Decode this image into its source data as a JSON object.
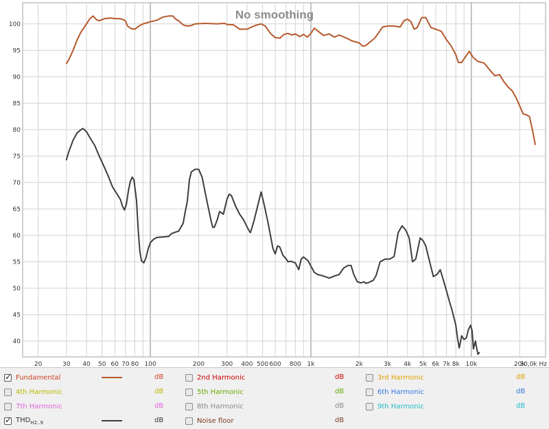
{
  "chart_data": {
    "type": "line",
    "title": "No smoothing",
    "xscale": "log",
    "xlim": [
      16,
      29000
    ],
    "ylim": [
      37,
      104
    ],
    "x_ticks": [
      {
        "v": 20,
        "t": "20"
      },
      {
        "v": 30,
        "t": "30"
      },
      {
        "v": 40,
        "t": "40"
      },
      {
        "v": 50,
        "t": "50"
      },
      {
        "v": 60,
        "t": "60"
      },
      {
        "v": 70,
        "t": "70"
      },
      {
        "v": 80,
        "t": "80"
      },
      {
        "v": 100,
        "t": "100"
      },
      {
        "v": 200,
        "t": "200"
      },
      {
        "v": 300,
        "t": "300"
      },
      {
        "v": 400,
        "t": "400"
      },
      {
        "v": 500,
        "t": "500"
      },
      {
        "v": 600,
        "t": "600"
      },
      {
        "v": 800,
        "t": "800"
      },
      {
        "v": 1000,
        "t": "1k"
      },
      {
        "v": 2000,
        "t": "2k"
      },
      {
        "v": 3000,
        "t": "3k"
      },
      {
        "v": 4000,
        "t": "4k"
      },
      {
        "v": 5000,
        "t": "5k"
      },
      {
        "v": 6000,
        "t": "6k"
      },
      {
        "v": 7000,
        "t": "7k"
      },
      {
        "v": 8000,
        "t": "8k"
      },
      {
        "v": 10000,
        "t": "10k"
      },
      {
        "v": 20000,
        "t": "20k"
      }
    ],
    "x_end_label": "30,0k Hz",
    "y_ticks": [
      40,
      45,
      50,
      55,
      60,
      65,
      70,
      75,
      80,
      85,
      90,
      95,
      100
    ],
    "y_unit": "dB",
    "grid": true,
    "series": [
      {
        "name": "Fundamental",
        "color": "#b5582a",
        "points": [
          [
            30,
            92.5
          ],
          [
            31,
            93.2
          ],
          [
            33,
            95
          ],
          [
            35,
            97
          ],
          [
            37,
            98.5
          ],
          [
            40,
            100
          ],
          [
            42,
            101
          ],
          [
            44,
            101.5
          ],
          [
            46,
            100.8
          ],
          [
            48,
            100.6
          ],
          [
            52,
            101
          ],
          [
            56,
            101.1
          ],
          [
            60,
            101
          ],
          [
            64,
            101
          ],
          [
            68,
            100.8
          ],
          [
            70,
            100.5
          ],
          [
            72,
            99.6
          ],
          [
            76,
            99.1
          ],
          [
            80,
            99
          ],
          [
            85,
            99.6
          ],
          [
            90,
            100
          ],
          [
            100,
            100.4
          ],
          [
            110,
            100.7
          ],
          [
            120,
            101.3
          ],
          [
            130,
            101.5
          ],
          [
            138,
            101.5
          ],
          [
            145,
            100.8
          ],
          [
            150,
            100.6
          ],
          [
            160,
            99.8
          ],
          [
            170,
            99.6
          ],
          [
            180,
            99.7
          ],
          [
            190,
            100
          ],
          [
            220,
            100.1
          ],
          [
            260,
            100
          ],
          [
            290,
            100.1
          ],
          [
            300,
            99.9
          ],
          [
            330,
            99.8
          ],
          [
            360,
            99
          ],
          [
            400,
            99
          ],
          [
            450,
            99.7
          ],
          [
            490,
            100
          ],
          [
            520,
            99.6
          ],
          [
            560,
            98.2
          ],
          [
            600,
            97.4
          ],
          [
            640,
            97.3
          ],
          [
            680,
            98
          ],
          [
            720,
            98.2
          ],
          [
            760,
            97.9
          ],
          [
            800,
            98.1
          ],
          [
            850,
            97.6
          ],
          [
            900,
            98
          ],
          [
            950,
            97.5
          ],
          [
            1000,
            98.2
          ],
          [
            1050,
            99.2
          ],
          [
            1100,
            98.7
          ],
          [
            1200,
            97.8
          ],
          [
            1300,
            98.1
          ],
          [
            1400,
            97.5
          ],
          [
            1500,
            97.9
          ],
          [
            1700,
            97.2
          ],
          [
            1800,
            96.8
          ],
          [
            1900,
            96.6
          ],
          [
            2000,
            96.4
          ],
          [
            2100,
            95.8
          ],
          [
            2200,
            95.9
          ],
          [
            2300,
            96.4
          ],
          [
            2500,
            97.3
          ],
          [
            2800,
            99.4
          ],
          [
            3000,
            99.6
          ],
          [
            3300,
            99.6
          ],
          [
            3600,
            99.4
          ],
          [
            3800,
            100.6
          ],
          [
            4000,
            100.9
          ],
          [
            4200,
            100.4
          ],
          [
            4400,
            99
          ],
          [
            4600,
            99.3
          ],
          [
            4900,
            101.2
          ],
          [
            5200,
            101.2
          ],
          [
            5600,
            99.3
          ],
          [
            6000,
            99
          ],
          [
            6500,
            98.6
          ],
          [
            7000,
            97
          ],
          [
            7500,
            95.8
          ],
          [
            8000,
            94.2
          ],
          [
            8300,
            92.7
          ],
          [
            8700,
            92.7
          ],
          [
            9200,
            93.8
          ],
          [
            9700,
            94.8
          ],
          [
            10300,
            93.6
          ],
          [
            11000,
            92.9
          ],
          [
            12000,
            92.6
          ],
          [
            13000,
            91.3
          ],
          [
            14000,
            90.2
          ],
          [
            15000,
            90.4
          ],
          [
            16000,
            89
          ],
          [
            17000,
            88
          ],
          [
            18000,
            87.3
          ],
          [
            19000,
            86
          ],
          [
            20000,
            84.5
          ],
          [
            21000,
            83
          ],
          [
            22000,
            82.8
          ],
          [
            23000,
            82.5
          ],
          [
            24000,
            80
          ],
          [
            25000,
            77.2
          ]
        ]
      },
      {
        "name": "THD",
        "color": "#3c3c3c",
        "points": [
          [
            30,
            74.3
          ],
          [
            31,
            75.8
          ],
          [
            33,
            78
          ],
          [
            35,
            79.4
          ],
          [
            37,
            80
          ],
          [
            38,
            80.2
          ],
          [
            40,
            79.6
          ],
          [
            42,
            78.5
          ],
          [
            45,
            77
          ],
          [
            48,
            75
          ],
          [
            52,
            72.7
          ],
          [
            55,
            71
          ],
          [
            58,
            69.2
          ],
          [
            62,
            67.8
          ],
          [
            65,
            66.8
          ],
          [
            67,
            65.5
          ],
          [
            69,
            64.8
          ],
          [
            71,
            66
          ],
          [
            73,
            68.5
          ],
          [
            75,
            70.2
          ],
          [
            77,
            71
          ],
          [
            79,
            70.5
          ],
          [
            82,
            66.5
          ],
          [
            84,
            61
          ],
          [
            86,
            57
          ],
          [
            88,
            55.2
          ],
          [
            91,
            54.8
          ],
          [
            94,
            55.8
          ],
          [
            97,
            57.5
          ],
          [
            100,
            58.6
          ],
          [
            105,
            59.3
          ],
          [
            110,
            59.6
          ],
          [
            120,
            59.7
          ],
          [
            130,
            59.8
          ],
          [
            135,
            60.3
          ],
          [
            140,
            60.5
          ],
          [
            150,
            60.8
          ],
          [
            160,
            62.3
          ],
          [
            165,
            64.5
          ],
          [
            170,
            66.5
          ],
          [
            175,
            70.5
          ],
          [
            180,
            72
          ],
          [
            190,
            72.5
          ],
          [
            200,
            72.5
          ],
          [
            210,
            71
          ],
          [
            225,
            66.5
          ],
          [
            240,
            62.5
          ],
          [
            245,
            61.5
          ],
          [
            250,
            61.5
          ],
          [
            260,
            62.8
          ],
          [
            270,
            64.5
          ],
          [
            285,
            64
          ],
          [
            300,
            66.8
          ],
          [
            310,
            67.8
          ],
          [
            320,
            67.5
          ],
          [
            340,
            65.5
          ],
          [
            360,
            64
          ],
          [
            380,
            63
          ],
          [
            410,
            61
          ],
          [
            420,
            60.5
          ],
          [
            440,
            62.5
          ],
          [
            470,
            66
          ],
          [
            490,
            68.2
          ],
          [
            510,
            66
          ],
          [
            540,
            62.5
          ],
          [
            560,
            60
          ],
          [
            580,
            57.5
          ],
          [
            600,
            56.5
          ],
          [
            620,
            58
          ],
          [
            640,
            57.8
          ],
          [
            670,
            56.2
          ],
          [
            700,
            55.6
          ],
          [
            720,
            55
          ],
          [
            750,
            55.1
          ],
          [
            800,
            54.8
          ],
          [
            840,
            53.5
          ],
          [
            870,
            55.5
          ],
          [
            900,
            55.9
          ],
          [
            960,
            55.2
          ],
          [
            1000,
            54.2
          ],
          [
            1050,
            53
          ],
          [
            1100,
            52.6
          ],
          [
            1200,
            52.3
          ],
          [
            1300,
            51.9
          ],
          [
            1400,
            52.3
          ],
          [
            1500,
            52.6
          ],
          [
            1600,
            53.8
          ],
          [
            1700,
            54.3
          ],
          [
            1780,
            54.3
          ],
          [
            1850,
            52.6
          ],
          [
            1950,
            51.2
          ],
          [
            2050,
            51
          ],
          [
            2150,
            51.2
          ],
          [
            2200,
            50.9
          ],
          [
            2300,
            51.1
          ],
          [
            2450,
            51.5
          ],
          [
            2550,
            52.4
          ],
          [
            2700,
            55
          ],
          [
            2900,
            55.5
          ],
          [
            3100,
            55.5
          ],
          [
            3300,
            56
          ],
          [
            3500,
            60.5
          ],
          [
            3700,
            61.8
          ],
          [
            3900,
            61
          ],
          [
            4100,
            59.5
          ],
          [
            4300,
            55
          ],
          [
            4500,
            55.5
          ],
          [
            4800,
            59.5
          ],
          [
            5000,
            59
          ],
          [
            5200,
            58
          ],
          [
            5500,
            55
          ],
          [
            5800,
            52.2
          ],
          [
            6100,
            52.6
          ],
          [
            6400,
            53.5
          ],
          [
            6700,
            51.5
          ],
          [
            7000,
            49.5
          ],
          [
            7300,
            47.5
          ],
          [
            7600,
            45.7
          ],
          [
            8000,
            43
          ],
          [
            8200,
            40.5
          ],
          [
            8400,
            38.7
          ],
          [
            8700,
            41
          ],
          [
            9000,
            40.3
          ],
          [
            9300,
            40.6
          ],
          [
            9600,
            42.2
          ],
          [
            9900,
            43
          ],
          [
            10100,
            42
          ],
          [
            10300,
            38.5
          ],
          [
            10600,
            40
          ],
          [
            10800,
            38.6
          ],
          [
            11000,
            37.5
          ],
          [
            11200,
            37.8
          ]
        ]
      }
    ]
  },
  "legend": {
    "unit_label": "dB",
    "items": [
      {
        "label": "Fundamental",
        "checked": true,
        "color": "#cc4422",
        "line_color": "#b5582a"
      },
      {
        "label": "2nd Harmonic",
        "checked": false,
        "color": "#cc0000"
      },
      {
        "label": "3rd Harmonic",
        "checked": false,
        "color": "#e0a000"
      },
      {
        "label": "4th Harmonic",
        "checked": false,
        "color": "#b8b800"
      },
      {
        "label": "5th Harmonic",
        "checked": false,
        "color": "#66aa00"
      },
      {
        "label": "6th Harmonic",
        "checked": false,
        "color": "#3377dd"
      },
      {
        "label": "7th Harmonic",
        "checked": false,
        "color": "#dd66dd"
      },
      {
        "label": "8th Harmonic",
        "checked": false,
        "color": "#888888"
      },
      {
        "label": "9th Harmonic",
        "checked": false,
        "color": "#22bbcc"
      },
      {
        "label": "THD",
        "sub": "H2..9",
        "checked": true,
        "color": "#333333",
        "line_color": "#3c3c3c"
      },
      {
        "label": "Noise floor",
        "checked": false,
        "color": "#7a3a1a"
      }
    ]
  }
}
